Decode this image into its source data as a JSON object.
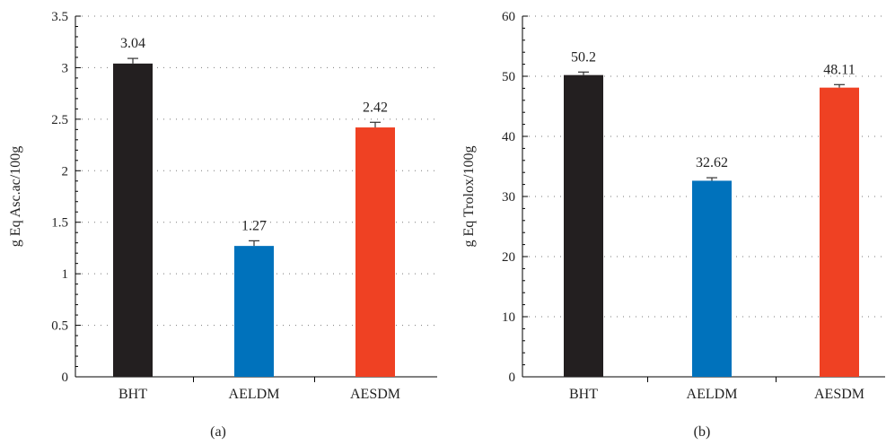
{
  "chart_data": [
    {
      "type": "bar",
      "panel_label": "(a)",
      "ylabel": "g Eq Asc.ac/100g",
      "categories": [
        "BHT",
        "AELDM",
        "AESDM"
      ],
      "values": [
        3.04,
        1.27,
        2.42
      ],
      "value_labels": [
        "3.04",
        "1.27",
        "2.42"
      ],
      "errors": [
        0.05,
        0.05,
        0.05
      ],
      "colors": [
        "#231f20",
        "#0072bc",
        "#ef4123"
      ],
      "ylim": [
        0,
        3.5
      ],
      "yticks": [
        0,
        0.5,
        1,
        1.5,
        2,
        2.5,
        3,
        3.5
      ],
      "ytick_labels": [
        "0",
        "0.5",
        "1",
        "1.5",
        "2",
        "2.5",
        "3",
        "3.5"
      ],
      "grid": true
    },
    {
      "type": "bar",
      "panel_label": "(b)",
      "ylabel": "g Eq Trolox/100g",
      "categories": [
        "BHT",
        "AELDM",
        "AESDM"
      ],
      "values": [
        50.2,
        32.62,
        48.11
      ],
      "value_labels": [
        "50.2",
        "32.62",
        "48.11"
      ],
      "errors": [
        0.5,
        0.5,
        0.5
      ],
      "colors": [
        "#231f20",
        "#0072bc",
        "#ef4123"
      ],
      "ylim": [
        0,
        60
      ],
      "yticks": [
        0,
        10,
        20,
        30,
        40,
        50,
        60
      ],
      "ytick_labels": [
        "0",
        "10",
        "20",
        "30",
        "40",
        "50",
        "60"
      ],
      "grid": true
    }
  ]
}
